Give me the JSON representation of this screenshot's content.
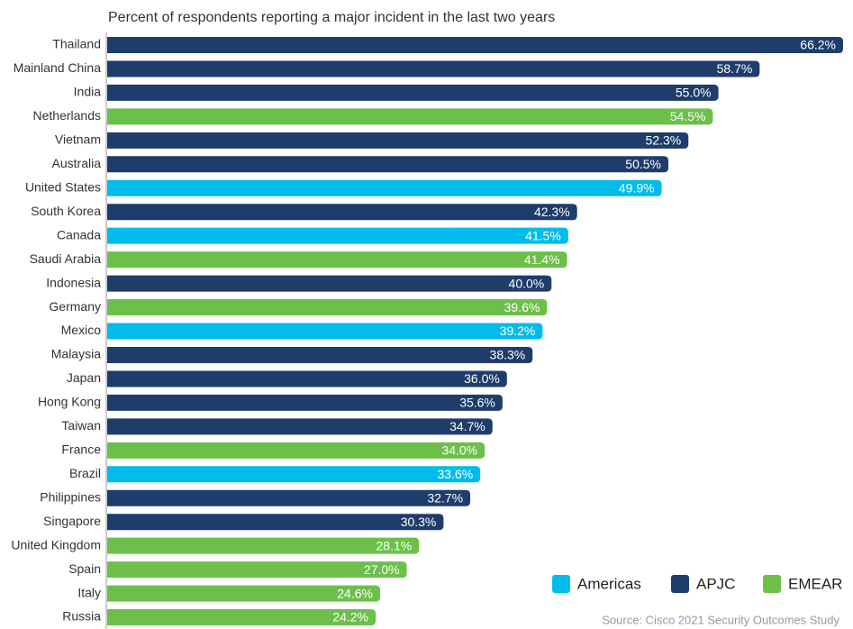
{
  "chart_data": {
    "type": "bar",
    "orientation": "horizontal",
    "title": "Percent of respondents reporting a major incident in the last two years",
    "source": "Source: Cisco 2021 Security Outcomes Study",
    "categories": [
      "Thailand",
      "Mainland China",
      "India",
      "Netherlands",
      "Vietnam",
      "Australia",
      "United States",
      "South Korea",
      "Canada",
      "Saudi Arabia",
      "Indonesia",
      "Germany",
      "Mexico",
      "Malaysia",
      "Japan",
      "Hong Kong",
      "Taiwan",
      "France",
      "Brazil",
      "Philippines",
      "Singapore",
      "United Kingdom",
      "Spain",
      "Italy",
      "Russia"
    ],
    "xlim": [
      0,
      66.2
    ],
    "legend": "bottom-right",
    "series": [
      {
        "name": "Americas",
        "color": "#00bceb",
        "values": [
          null,
          null,
          null,
          null,
          null,
          null,
          49.9,
          null,
          41.5,
          null,
          null,
          null,
          39.2,
          null,
          null,
          null,
          null,
          null,
          33.6,
          null,
          null,
          null,
          null,
          null,
          null
        ],
        "value_labels": [
          null,
          null,
          null,
          null,
          null,
          null,
          "49.9%",
          null,
          "41.5%",
          null,
          null,
          null,
          "39.2%",
          null,
          null,
          null,
          null,
          null,
          "33.6%",
          null,
          null,
          null,
          null,
          null,
          null
        ]
      },
      {
        "name": "APJC",
        "color": "#1e3d6b",
        "values": [
          66.2,
          58.7,
          55.0,
          null,
          52.3,
          50.5,
          null,
          42.3,
          null,
          null,
          40.0,
          null,
          null,
          38.3,
          36.0,
          35.6,
          34.7,
          null,
          null,
          32.7,
          30.3,
          null,
          null,
          null,
          null
        ],
        "value_labels": [
          "66.2%",
          "58.7%",
          "55.0%",
          null,
          "52.3%",
          "50.5%",
          null,
          "42.3%",
          null,
          null,
          "40.0%",
          null,
          null,
          "38.3%",
          "36.0%",
          "35.6%",
          "34.7%",
          null,
          null,
          "32.7%",
          "30.3%",
          null,
          null,
          null,
          null
        ]
      },
      {
        "name": "EMEAR",
        "color": "#6cc04a",
        "values": [
          null,
          null,
          null,
          54.5,
          null,
          null,
          null,
          null,
          null,
          41.4,
          null,
          39.6,
          null,
          null,
          null,
          null,
          null,
          34.0,
          null,
          null,
          null,
          28.1,
          27.0,
          24.6,
          24.2
        ],
        "value_labels": [
          null,
          null,
          null,
          "54.5%",
          null,
          null,
          null,
          null,
          null,
          "41.4%",
          null,
          "39.6%",
          null,
          null,
          null,
          null,
          null,
          "34.0%",
          null,
          null,
          null,
          "28.1%",
          "27.0%",
          "24.6%",
          "24.2%"
        ]
      }
    ]
  }
}
